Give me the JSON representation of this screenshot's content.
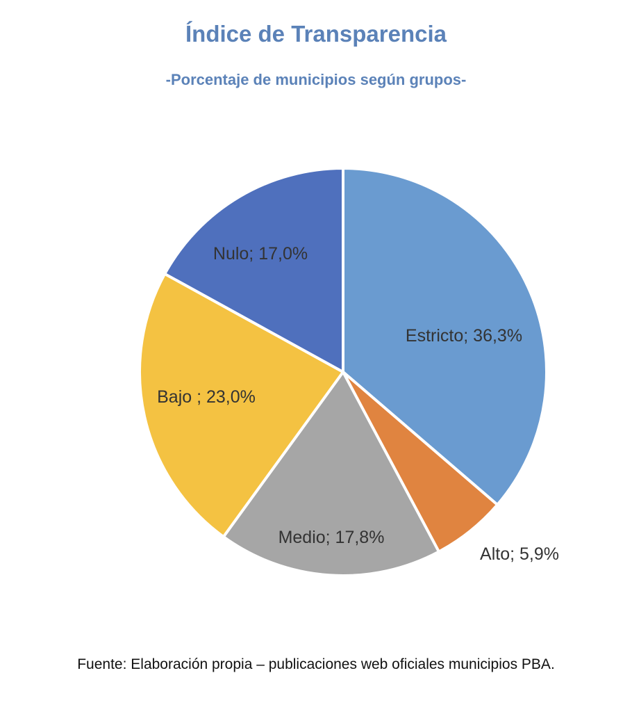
{
  "chart_data": {
    "type": "pie",
    "title": "Índice de Transparencia",
    "subtitle": "-Porcentaje de municipios según grupos-",
    "categories": [
      "Estricto",
      "Alto",
      "Medio",
      "Bajo",
      "Nulo"
    ],
    "values": [
      36.3,
      5.9,
      17.8,
      23.0,
      17.0
    ],
    "value_unit": "%",
    "labels": [
      "Estricto; 36,3%",
      "Alto; 5,9%",
      "Medio; 17,8%",
      "Bajo ; 23,0%",
      "Nulo; 17,0%"
    ],
    "colors": [
      "#6a9bd0",
      "#e08440",
      "#a6a6a6",
      "#f4c242",
      "#4f70bd"
    ],
    "start_angle": "12 o'clock",
    "direction": "clockwise",
    "legend": "none"
  },
  "footer": {
    "source": "Fuente: Elaboración propia – publicaciones web oficiales municipios PBA."
  }
}
